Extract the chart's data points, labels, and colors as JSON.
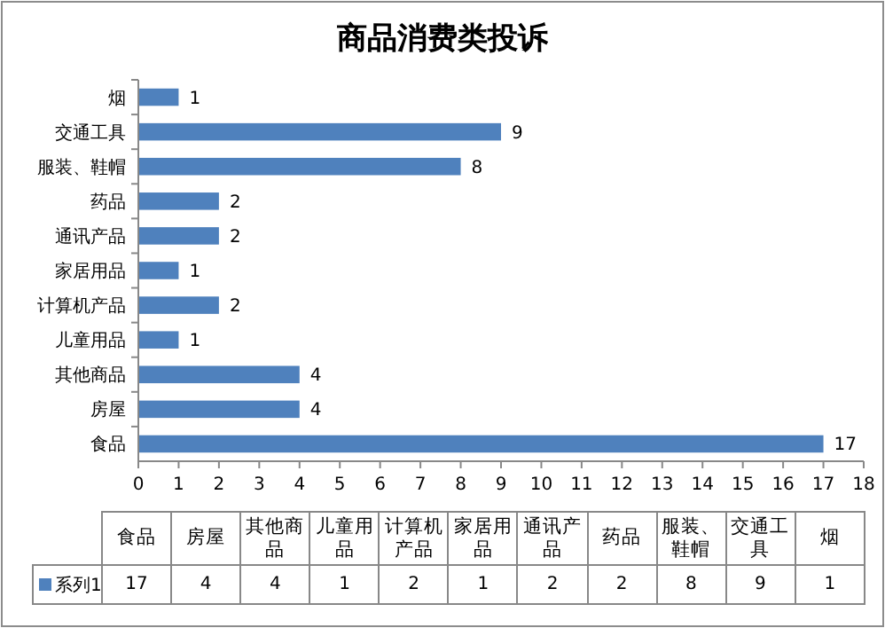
{
  "chart_data": {
    "type": "bar",
    "title": "商品消费类投诉",
    "orientation": "horizontal",
    "categories": [
      "烟",
      "交通工具",
      "服装、鞋帽",
      "药品",
      "通讯产品",
      "家居用品",
      "计算机产品",
      "儿童用品",
      "其他商品",
      "房屋",
      "食品"
    ],
    "series": [
      {
        "name": "系列1",
        "color": "#4f81bd",
        "values": [
          1,
          9,
          8,
          2,
          2,
          1,
          2,
          1,
          4,
          4,
          17
        ]
      }
    ],
    "xlim": [
      0,
      18
    ],
    "xticks": [
      0,
      1,
      2,
      3,
      4,
      5,
      6,
      7,
      8,
      9,
      10,
      11,
      12,
      13,
      14,
      15,
      16,
      17,
      18
    ],
    "data_labels": true,
    "annotations": [
      "17",
      "4",
      "4",
      "1",
      "2",
      "1",
      "2",
      "2",
      "8",
      "9",
      "1"
    ],
    "grid": false,
    "legend": "bottom"
  }
}
